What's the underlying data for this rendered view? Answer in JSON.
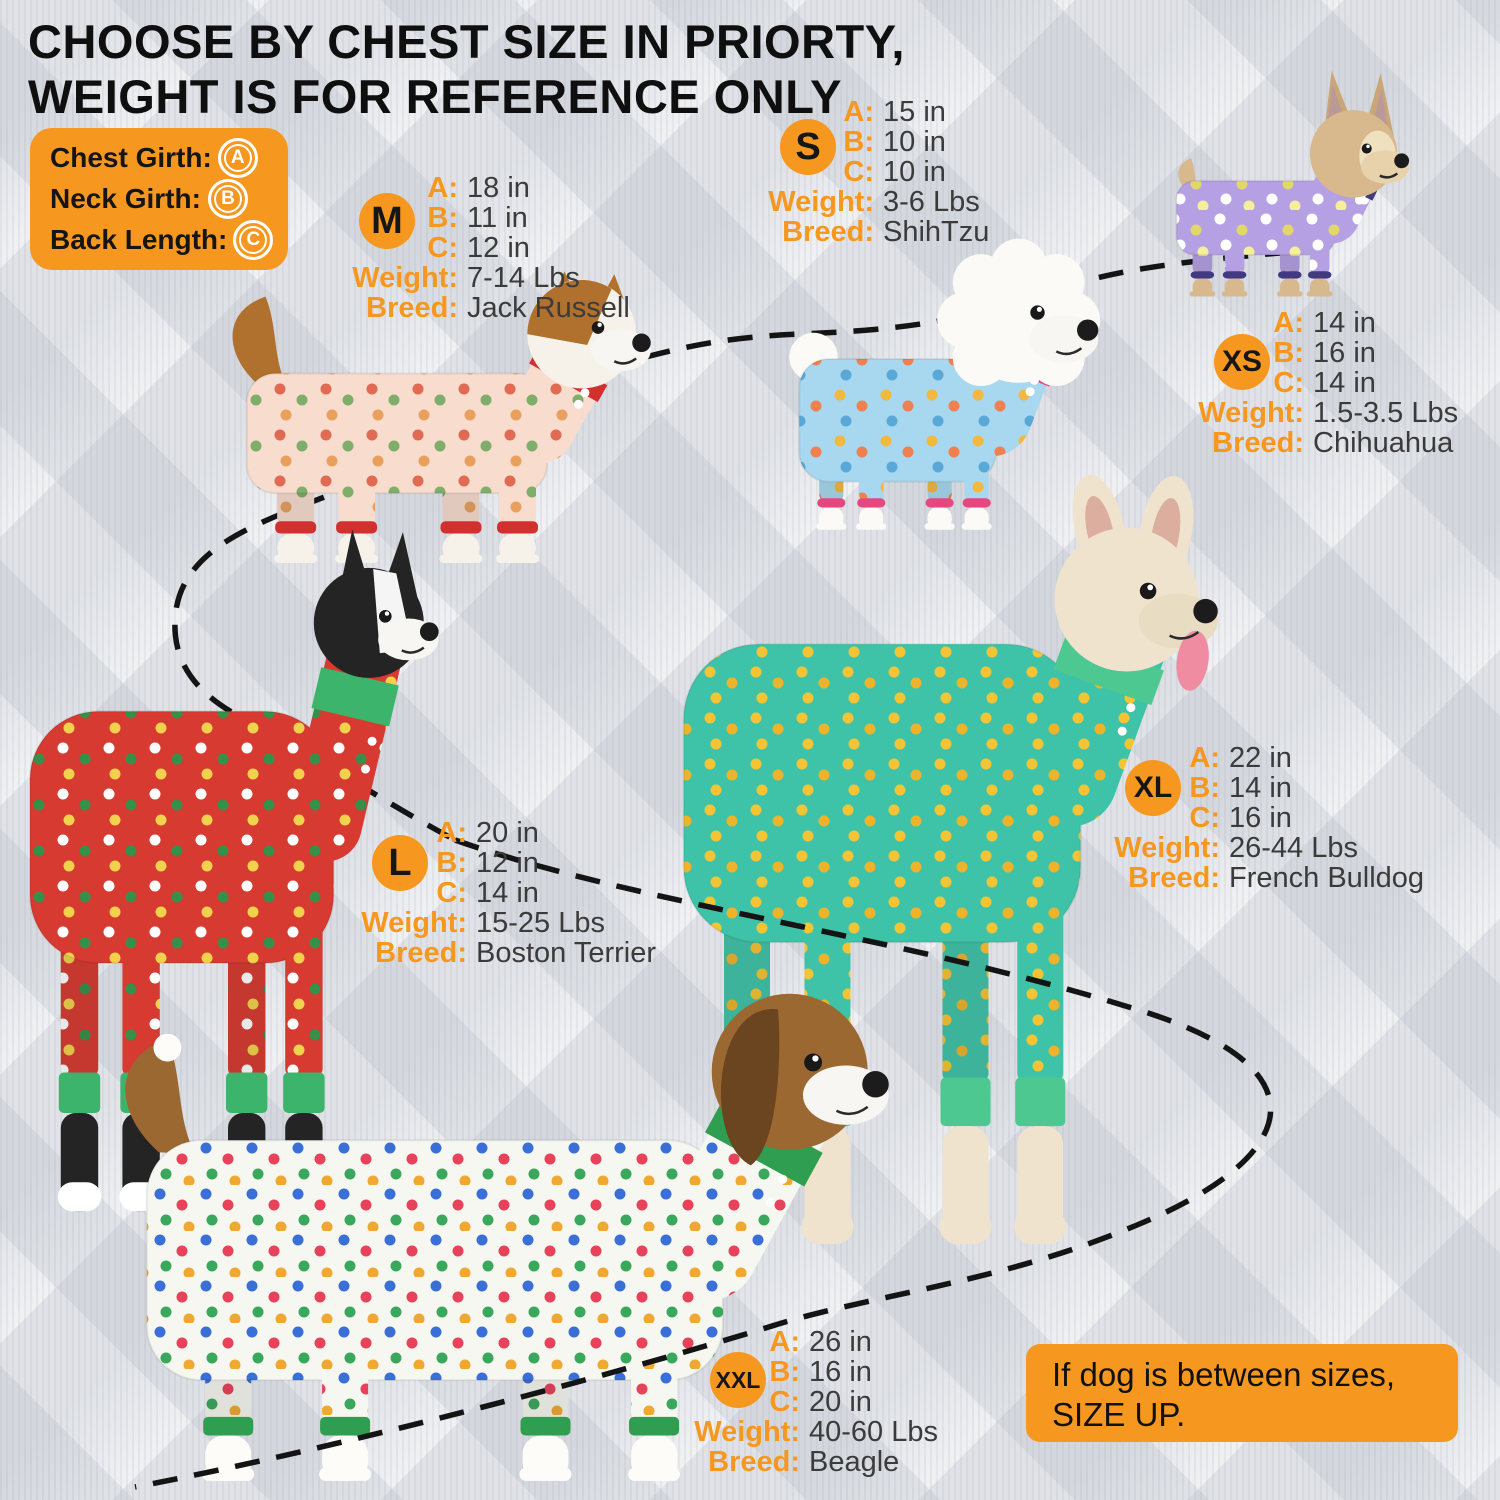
{
  "title": {
    "line1": "CHOOSE BY CHEST SIZE IN PRIORTY,",
    "line2": "WEIGHT IS FOR REFERENCE ONLY"
  },
  "legend": {
    "rows": [
      {
        "label": "Chest Girth:",
        "symbol": "A"
      },
      {
        "label": "Neck Girth:",
        "symbol": "B"
      },
      {
        "label": "Back Length:",
        "symbol": "C"
      }
    ]
  },
  "field_labels": {
    "a": "A:",
    "b": "B:",
    "c": "C:",
    "weight": "Weight:",
    "breed": "Breed:"
  },
  "sizes": [
    {
      "size": "M",
      "chest": "18 in",
      "neck": "11 in",
      "back": "12 in",
      "weight": "7-14 Lbs",
      "breed": "Jack Russell"
    },
    {
      "size": "S",
      "chest": "15 in",
      "neck": "10 in",
      "back": "10 in",
      "weight": "3-6 Lbs",
      "breed": "ShihTzu"
    },
    {
      "size": "XS",
      "chest": "14 in",
      "neck": "16 in",
      "back": "14 in",
      "weight": "1.5-3.5 Lbs",
      "breed": "Chihuahua"
    },
    {
      "size": "L",
      "chest": "20 in",
      "neck": "12 in",
      "back": "14 in",
      "weight": "15-25 Lbs",
      "breed": "Boston Terrier"
    },
    {
      "size": "XL",
      "chest": "22 in",
      "neck": "14 in",
      "back": "16 in",
      "weight": "26-44 Lbs",
      "breed": "French Bulldog"
    },
    {
      "size": "XXL",
      "chest": "26 in",
      "neck": "16 in",
      "back": "20 in",
      "weight": "40-60 Lbs",
      "breed": "Beagle"
    }
  ],
  "note": {
    "line1": "If dog is between sizes,",
    "line2": "SIZE UP."
  },
  "colors": {
    "accent_orange": "#F6981F",
    "title_text": "#0f0f0f",
    "value_text": "#3b3b3b",
    "dashed_line": "#141414"
  },
  "dogs": [
    {
      "id": "jack-russell",
      "breed": "Jack Russell",
      "fur": "#f6f2ea",
      "patch": "#b0702e",
      "pajama": "#f8dcce",
      "trim": "#d2302e",
      "motifs": [
        "#e06a52",
        "#7fae6a",
        "#e8a05c"
      ]
    },
    {
      "id": "shih-tzu",
      "breed": "ShihTzu",
      "fur": "#fbfaf6",
      "patch": "#fbfaf6",
      "pajama": "#a8d8ef",
      "trim": "#e5487f",
      "motifs": [
        "#f3b83e",
        "#ef8050",
        "#5aa8d8"
      ]
    },
    {
      "id": "chihuahua",
      "breed": "Chihuahua",
      "fur": "#d8b98e",
      "patch": "#caa577",
      "pajama": "#b4a0e2",
      "trim": "#413a80",
      "motifs": [
        "#ffffff",
        "#e2d86a",
        "#ffffff",
        "#f5ef9a"
      ]
    },
    {
      "id": "boston-terrier",
      "breed": "Boston Terrier",
      "fur": "#ffffff",
      "patch": "#242424",
      "legFur": "#242424",
      "pajama": "#d63a31",
      "trim": "#3cb46c",
      "motifs": [
        "#ffffff",
        "#35904a",
        "#f2d24c"
      ]
    },
    {
      "id": "french-bulldog",
      "breed": "French Bulldog",
      "fur": "#efe3cd",
      "patch": "#efe3cd",
      "pajama": "#3fc3a8",
      "trim": "#4cc890",
      "motifs": [
        "#f5c434",
        "#edb32a",
        "#f5c434"
      ]
    },
    {
      "id": "beagle",
      "breed": "Beagle",
      "fur": "#fdfcf8",
      "patch": "#9c6832",
      "earColor": "#6b4420",
      "pajama": "#f5f7f0",
      "trim": "#2f9e50",
      "motifs": [
        "#3a6fd8",
        "#e8415a",
        "#3aa85c",
        "#f0a830"
      ]
    }
  ]
}
